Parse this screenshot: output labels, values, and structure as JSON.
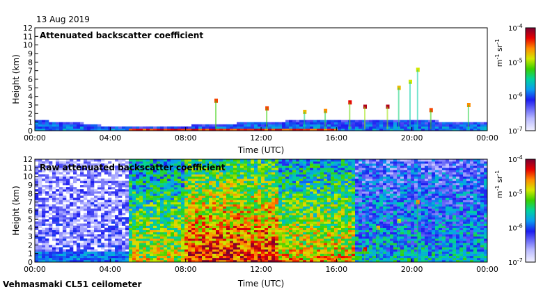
{
  "date_label": "13 Aug 2019",
  "instrument_label": "Vehmasmaki CL51 ceilometer",
  "chart_data": [
    {
      "type": "heatmap",
      "title": "Attenuated backscatter coefficient",
      "xlabel": "Time (UTC)",
      "ylabel": "Height (km)",
      "x_ticks": [
        "00:00",
        "04:00",
        "08:00",
        "12:00",
        "16:00",
        "20:00",
        "00:00"
      ],
      "x_range_hours": [
        0,
        24
      ],
      "y_ticks": [
        0,
        1,
        2,
        3,
        4,
        5,
        6,
        7,
        8,
        9,
        10,
        11,
        12
      ],
      "ylim": [
        0,
        12
      ],
      "colorbar": {
        "scale": "log",
        "range": [
          1e-07,
          0.0001
        ],
        "tick_labels": [
          {
            "mantissa": "10",
            "exp": "-4"
          },
          {
            "mantissa": "10",
            "exp": "-5"
          },
          {
            "mantissa": "10",
            "exp": "-6"
          },
          {
            "mantissa": "10",
            "exp": "-7"
          }
        ],
        "unit": {
          "a": "m",
          "a_exp": "-1",
          "b": "sr",
          "b_exp": "-1"
        }
      },
      "boundary_layer_top_km": [
        [
          0,
          1.2
        ],
        [
          2,
          1.0
        ],
        [
          4,
          0.5
        ],
        [
          6,
          0.4
        ],
        [
          8,
          0.6
        ],
        [
          10,
          0.8
        ],
        [
          12,
          1.0
        ],
        [
          14,
          1.2
        ],
        [
          16,
          1.3
        ],
        [
          18,
          1.2
        ],
        [
          20,
          1.2
        ],
        [
          22,
          1.1
        ],
        [
          24,
          1.1
        ]
      ],
      "cloud_features": [
        {
          "t": 9.6,
          "h": 3.5,
          "level": 0.85
        },
        {
          "t": 12.3,
          "h": 2.6,
          "level": 0.85
        },
        {
          "t": 14.3,
          "h": 2.2,
          "level": 0.75
        },
        {
          "t": 15.4,
          "h": 2.3,
          "level": 0.8
        },
        {
          "t": 16.7,
          "h": 3.3,
          "level": 0.9
        },
        {
          "t": 17.5,
          "h": 2.8,
          "level": 0.95
        },
        {
          "t": 18.7,
          "h": 2.8,
          "level": 0.95
        },
        {
          "t": 19.3,
          "h": 5.0,
          "level": 0.75
        },
        {
          "t": 19.9,
          "h": 5.7,
          "level": 0.7
        },
        {
          "t": 20.3,
          "h": 7.1,
          "level": 0.7
        },
        {
          "t": 21.0,
          "h": 2.4,
          "level": 0.85
        },
        {
          "t": 23.0,
          "h": 3.0,
          "level": 0.8
        }
      ]
    },
    {
      "type": "heatmap",
      "title": "Raw attenuated backscatter coefficient",
      "xlabel": "Time (UTC)",
      "ylabel": "Height (km)",
      "x_ticks": [
        "00:00",
        "04:00",
        "08:00",
        "12:00",
        "16:00",
        "20:00",
        "00:00"
      ],
      "x_range_hours": [
        0,
        24
      ],
      "y_ticks": [
        0,
        1,
        2,
        3,
        4,
        5,
        6,
        7,
        8,
        9,
        10,
        11,
        12
      ],
      "ylim": [
        0,
        12
      ],
      "colorbar": {
        "scale": "log",
        "range": [
          1e-07,
          0.0001
        ],
        "tick_labels": [
          {
            "mantissa": "10",
            "exp": "-4"
          },
          {
            "mantissa": "10",
            "exp": "-5"
          },
          {
            "mantissa": "10",
            "exp": "-6"
          },
          {
            "mantissa": "10",
            "exp": "-7"
          }
        ],
        "unit": {
          "a": "m",
          "a_exp": "-1",
          "b": "sr",
          "b_exp": "-1"
        }
      },
      "noise_regions": [
        {
          "t0": 0.0,
          "t1": 5.0,
          "level": 0.15
        },
        {
          "t0": 5.0,
          "t1": 8.0,
          "level": 0.55
        },
        {
          "t0": 8.0,
          "t1": 13.0,
          "level": 0.72
        },
        {
          "t0": 13.0,
          "t1": 17.0,
          "level": 0.6
        },
        {
          "t0": 17.0,
          "t1": 24.0,
          "level": 0.35
        }
      ],
      "cloud_features": [
        {
          "t": 17.5,
          "h": 1.5,
          "level": 0.9
        },
        {
          "t": 18.2,
          "h": 4.0,
          "level": 0.75
        },
        {
          "t": 19.3,
          "h": 4.8,
          "level": 0.7
        },
        {
          "t": 20.3,
          "h": 7.0,
          "level": 0.8
        }
      ]
    }
  ]
}
